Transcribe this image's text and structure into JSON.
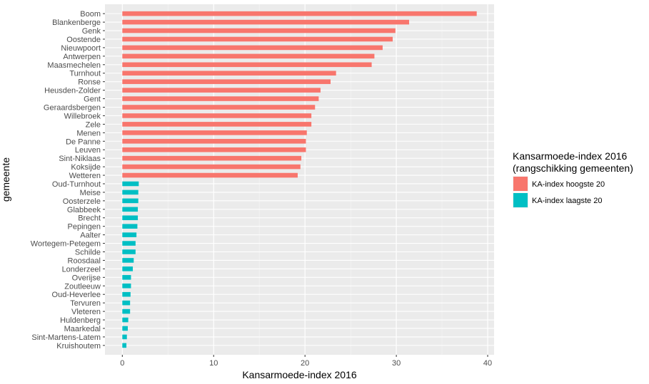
{
  "chart_data": {
    "type": "bar",
    "orientation": "horizontal",
    "xlabel": "Kansarmoede-index 2016",
    "ylabel": "gemeente",
    "xlim": [
      -1.9,
      40.7
    ],
    "xticks": [
      "0",
      "10",
      "20",
      "30",
      "40"
    ],
    "grid": true,
    "legend": {
      "title": "Kansarmoede-index 2016",
      "subtitle": "(rangschikking gemeenten)",
      "placement": "right",
      "entries": [
        {
          "label": "KA-index hoogste 20",
          "color": "#F8766D"
        },
        {
          "label": "KA-index laagste 20",
          "color": "#00BFC4"
        }
      ]
    },
    "categories": [
      "Boom",
      "Blankenberge",
      "Genk",
      "Oostende",
      "Nieuwpoort",
      "Antwerpen",
      "Maasmechelen",
      "Turnhout",
      "Ronse",
      "Heusden-Zolder",
      "Gent",
      "Geraardsbergen",
      "Willebroek",
      "Zele",
      "Menen",
      "De Panne",
      "Leuven",
      "Sint-Niklaas",
      "Koksijde",
      "Wetteren",
      "Oud-Turnhout",
      "Meise",
      "Oosterzele",
      "Glabbeek",
      "Brecht",
      "Pepingen",
      "Aalter",
      "Wortegem-Petegem",
      "Schilde",
      "Roosdaal",
      "Londerzeel",
      "Overijse",
      "Zoutleeuw",
      "Oud-Heverlee",
      "Tervuren",
      "Vleteren",
      "Huldenberg",
      "Maarkedal",
      "Sint-Martens-Latem",
      "Kruishoutem"
    ],
    "values": [
      38.8,
      31.4,
      29.9,
      29.6,
      28.5,
      27.6,
      27.3,
      23.4,
      22.8,
      21.7,
      21.5,
      21.1,
      20.7,
      20.7,
      20.2,
      20.1,
      20.1,
      19.6,
      19.5,
      19.2,
      1.8,
      1.75,
      1.75,
      1.7,
      1.7,
      1.65,
      1.55,
      1.45,
      1.45,
      1.25,
      1.15,
      0.95,
      0.95,
      0.9,
      0.85,
      0.85,
      0.65,
      0.6,
      0.5,
      0.45
    ],
    "groups": [
      "KA-index hoogste 20",
      "KA-index hoogste 20",
      "KA-index hoogste 20",
      "KA-index hoogste 20",
      "KA-index hoogste 20",
      "KA-index hoogste 20",
      "KA-index hoogste 20",
      "KA-index hoogste 20",
      "KA-index hoogste 20",
      "KA-index hoogste 20",
      "KA-index hoogste 20",
      "KA-index hoogste 20",
      "KA-index hoogste 20",
      "KA-index hoogste 20",
      "KA-index hoogste 20",
      "KA-index hoogste 20",
      "KA-index hoogste 20",
      "KA-index hoogste 20",
      "KA-index hoogste 20",
      "KA-index hoogste 20",
      "KA-index laagste 20",
      "KA-index laagste 20",
      "KA-index laagste 20",
      "KA-index laagste 20",
      "KA-index laagste 20",
      "KA-index laagste 20",
      "KA-index laagste 20",
      "KA-index laagste 20",
      "KA-index laagste 20",
      "KA-index laagste 20",
      "KA-index laagste 20",
      "KA-index laagste 20",
      "KA-index laagste 20",
      "KA-index laagste 20",
      "KA-index laagste 20",
      "KA-index laagste 20",
      "KA-index laagste 20",
      "KA-index laagste 20",
      "KA-index laagste 20",
      "KA-index laagste 20"
    ]
  }
}
